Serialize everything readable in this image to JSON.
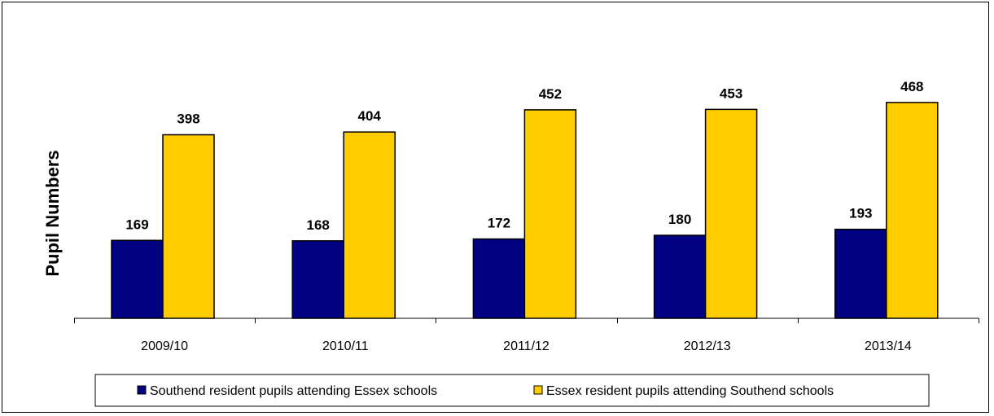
{
  "chart_data": {
    "type": "bar",
    "title": "",
    "xlabel": "",
    "ylabel": "Pupil Numbers",
    "categories": [
      "2009/10",
      "2010/11",
      "2011/12",
      "2012/13",
      "2013/14"
    ],
    "series": [
      {
        "name": "Southend resident pupils attending Essex schools",
        "values": [
          169,
          168,
          172,
          180,
          193
        ],
        "color": "#000080"
      },
      {
        "name": "Essex resident pupils attending Southend schools",
        "values": [
          398,
          404,
          452,
          453,
          468
        ],
        "color": "#FFCC00"
      }
    ],
    "ylim": [
      0,
      500
    ],
    "grid": false,
    "legend_position": "bottom",
    "data_labels": true
  }
}
